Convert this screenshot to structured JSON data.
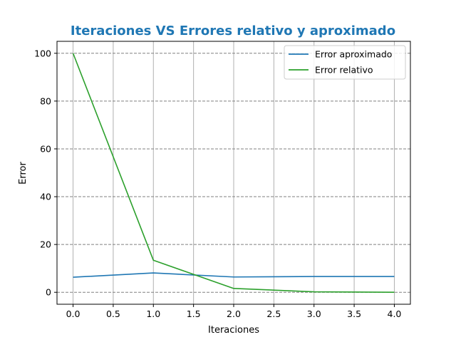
{
  "chart_data": {
    "type": "line",
    "title": "Iteraciones VS Errores relativo y aproximado",
    "title_color": "#1f77b4",
    "xlabel": "Iteraciones",
    "ylabel": "Error",
    "xlim": [
      -0.2,
      4.2
    ],
    "ylim": [
      -5,
      105
    ],
    "x_ticks": [
      "0.0",
      "0.5",
      "1.0",
      "1.5",
      "2.0",
      "2.5",
      "3.0",
      "3.5",
      "4.0"
    ],
    "y_ticks": [
      "0",
      "20",
      "40",
      "60",
      "80",
      "100"
    ],
    "grid": {
      "x": "solid gray",
      "y": "dashed gray"
    },
    "legend_position": "top-right",
    "x": [
      0,
      1,
      2,
      3,
      4
    ],
    "series": [
      {
        "name": "Error aproximado",
        "color": "#1f77b4",
        "values": [
          6.3,
          8.1,
          6.4,
          6.6,
          6.6
        ]
      },
      {
        "name": "Error relativo",
        "color": "#2ca02c",
        "values": [
          100,
          13.4,
          1.6,
          0.2,
          0.0
        ]
      }
    ]
  }
}
